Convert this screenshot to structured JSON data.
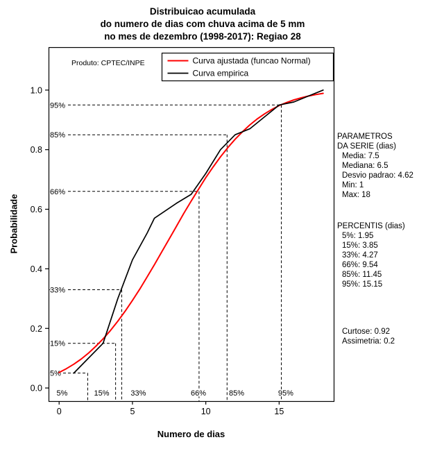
{
  "title": {
    "line1": "Distribuicao acumulada",
    "line2": "do numero de dias com chuva acima de 5 mm",
    "line3": "no mes de dezembro (1998-2017): Regiao 28"
  },
  "plot": {
    "watermark": "Produto: CPTEC/INPE",
    "xlabel": "Numero de dias",
    "ylabel": "Probabilidade"
  },
  "stats_panel": {
    "params_header_line1": "PARAMETROS",
    "params_header_line2": "DA SERIE (dias)",
    "params": [
      "Media: 7.5",
      "Mediana: 6.5",
      "Desvio padrao: 4.62",
      "Min: 1",
      "Max: 18"
    ],
    "percentis_header": "PERCENTIS (dias)",
    "percentis": [
      "5%: 1.95",
      "15%: 3.85",
      "33%: 4.27",
      "66%: 9.54",
      "85%: 11.45",
      "95%: 15.15"
    ],
    "shape": [
      "Curtose: 0.92",
      "Assimetria: 0.2"
    ]
  },
  "chart_data": {
    "type": "line",
    "title": "Distribuicao acumulada do numero de dias com chuva acima de 5 mm no mes de dezembro (1998-2017): Regiao 28",
    "xlabel": "Numero de dias",
    "ylabel": "Probabilidade",
    "xlim": [
      -0.72,
      18.72
    ],
    "ylim": [
      -0.044,
      1.144
    ],
    "grid": false,
    "legend_position": "top-right",
    "xticks": [
      {
        "v": 0,
        "label": "0"
      },
      {
        "v": 5,
        "label": "5"
      },
      {
        "v": 10,
        "label": "10"
      },
      {
        "v": 15,
        "label": "15"
      }
    ],
    "yticks": [
      {
        "v": 0.0,
        "label": "0.0"
      },
      {
        "v": 0.2,
        "label": "0.2"
      },
      {
        "v": 0.4,
        "label": "0.4"
      },
      {
        "v": 0.6,
        "label": "0.6"
      },
      {
        "v": 0.8,
        "label": "0.8"
      },
      {
        "v": 1.0,
        "label": "1.0"
      }
    ],
    "series": [
      {
        "key": "fitted",
        "name": "Curva ajustada (funcao Normal)",
        "color": "#ff0000",
        "width": 2,
        "distribution": "Normal(mean=7.5, sd=4.62)",
        "x": [
          0,
          0.5,
          1,
          1.5,
          2,
          2.5,
          3,
          3.5,
          4,
          4.5,
          5,
          5.5,
          6,
          6.5,
          7,
          7.5,
          8,
          8.5,
          9,
          9.5,
          10,
          10.5,
          11,
          11.5,
          12,
          12.5,
          13,
          13.5,
          14,
          14.5,
          15,
          15.5,
          16,
          16.5,
          17,
          17.5,
          18
        ],
        "y": [
          0.052,
          0.065,
          0.08,
          0.097,
          0.117,
          0.14,
          0.165,
          0.193,
          0.224,
          0.258,
          0.294,
          0.332,
          0.373,
          0.414,
          0.457,
          0.5,
          0.543,
          0.586,
          0.627,
          0.667,
          0.706,
          0.742,
          0.776,
          0.807,
          0.835,
          0.86,
          0.883,
          0.903,
          0.92,
          0.935,
          0.948,
          0.958,
          0.967,
          0.974,
          0.98,
          0.985,
          0.989
        ]
      },
      {
        "key": "empirical",
        "name": "Curva empirica",
        "color": "#000000",
        "width": 1.7,
        "x": [
          1,
          3,
          4,
          5,
          6,
          6.5,
          8,
          9,
          10,
          11,
          12,
          13,
          14,
          15,
          16,
          17,
          18
        ],
        "y": [
          0.05,
          0.15,
          0.3,
          0.43,
          0.52,
          0.57,
          0.62,
          0.65,
          0.72,
          0.8,
          0.85,
          0.87,
          0.91,
          0.95,
          0.96,
          0.98,
          1.0
        ]
      }
    ],
    "percentiles": [
      {
        "label": "5%",
        "value": 1.95,
        "prob": 0.05,
        "label_x": 0.2
      },
      {
        "label": "15%",
        "value": 3.85,
        "prob": 0.15,
        "label_x": 2.9
      },
      {
        "label": "33%",
        "value": 4.27,
        "prob": 0.33,
        "label_x": 5.4
      },
      {
        "label": "66%",
        "value": 9.54,
        "prob": 0.66,
        "label_x": 9.5
      },
      {
        "label": "85%",
        "value": 11.45,
        "prob": 0.85,
        "label_x": 12.1
      },
      {
        "label": "95%",
        "value": 15.15,
        "prob": 0.95,
        "label_x": 15.45
      }
    ]
  }
}
